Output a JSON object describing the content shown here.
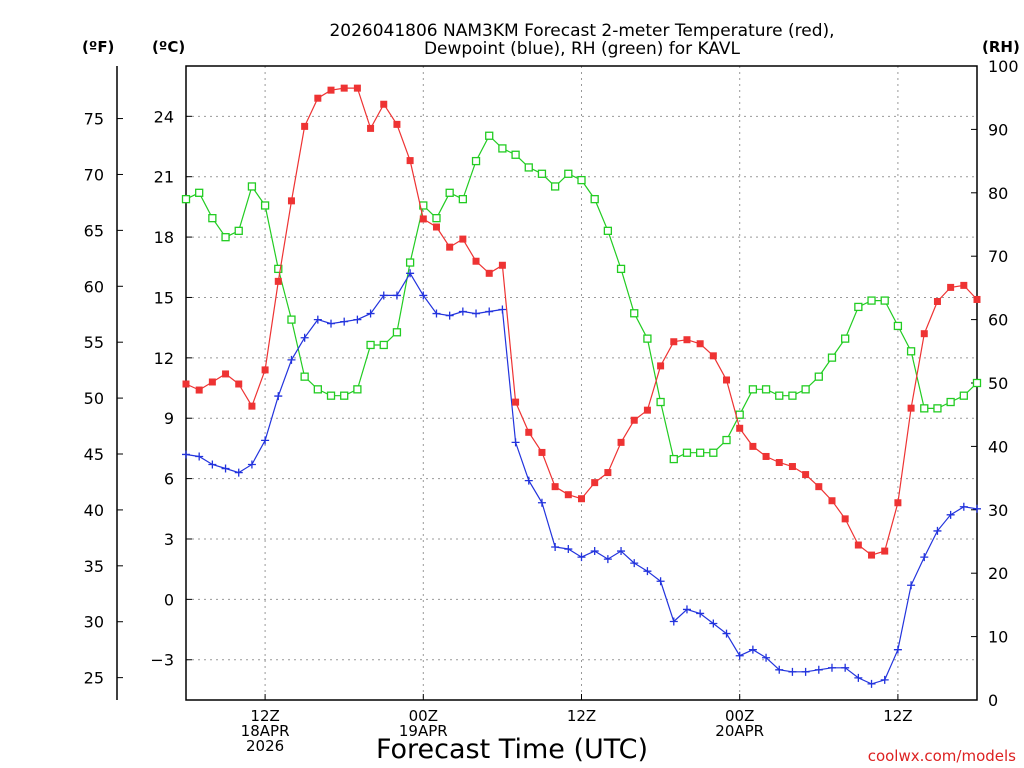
{
  "title_line1": "2026041806 NAM3KM Forecast 2-meter Temperature (red),",
  "title_line2": "Dewpoint (blue), RH (green) for KAVL",
  "unit_f": "(ºF)",
  "unit_c": "(ºC)",
  "unit_rh": "(RH)",
  "x_axis_title": "Forecast Time (UTC)",
  "credit": "coolwx.com/models",
  "colors": {
    "temperature": "#ee3333",
    "dewpoint": "#2233dd",
    "rh": "#22cc22",
    "grid": "#999999"
  },
  "chart_data": {
    "type": "line",
    "title": "2026041806 NAM3KM Forecast 2-meter Temperature (red), Dewpoint (blue), RH (green) for KAVL",
    "xlabel": "Forecast Time (UTC)",
    "x_unit": "hours since 2026-04-18 06Z",
    "xlim": [
      0,
      60
    ],
    "x_ticks": [
      {
        "value": 6,
        "lines": [
          "12Z",
          "18APR",
          "2026"
        ]
      },
      {
        "value": 18,
        "lines": [
          "00Z",
          "19APR"
        ]
      },
      {
        "value": 30,
        "lines": [
          "12Z"
        ]
      },
      {
        "value": 42,
        "lines": [
          "00Z",
          "20APR"
        ]
      },
      {
        "value": 54,
        "lines": [
          "12Z"
        ]
      }
    ],
    "ylabel_left_celsius": "(ºC)",
    "ylim_celsius": [
      -5,
      26.5
    ],
    "y_ticks_celsius": [
      -3,
      0,
      3,
      6,
      9,
      12,
      15,
      18,
      21,
      24
    ],
    "y_ticks_fahrenheit": [
      25,
      30,
      35,
      40,
      45,
      50,
      55,
      60,
      65,
      70,
      75
    ],
    "ylabel_right_rh": "(RH)",
    "ylim_rh": [
      0,
      100
    ],
    "y_ticks_rh": [
      0,
      10,
      20,
      30,
      40,
      50,
      60,
      70,
      80,
      90,
      100
    ],
    "x": [
      0,
      1,
      2,
      3,
      4,
      5,
      6,
      7,
      8,
      9,
      10,
      11,
      12,
      13,
      14,
      15,
      16,
      17,
      18,
      19,
      20,
      21,
      22,
      23,
      24,
      25,
      26,
      27,
      28,
      29,
      30,
      31,
      32,
      33,
      34,
      35,
      36,
      37,
      38,
      39,
      40,
      41,
      42,
      43,
      44,
      45,
      46,
      47,
      48,
      49,
      50,
      51,
      52,
      53,
      54,
      55,
      56,
      57,
      58,
      59,
      60
    ],
    "series": [
      {
        "name": "Temperature (°C)",
        "axis": "celsius",
        "color": "#ee3333",
        "marker": "filled-square",
        "values": [
          10.7,
          10.4,
          10.8,
          11.2,
          10.7,
          9.6,
          11.4,
          15.8,
          19.8,
          23.5,
          24.9,
          25.3,
          25.4,
          25.4,
          23.4,
          24.6,
          23.6,
          21.8,
          18.9,
          18.5,
          17.5,
          17.9,
          16.8,
          16.2,
          16.6,
          9.8,
          8.3,
          7.3,
          5.6,
          5.2,
          5.0,
          5.8,
          6.3,
          7.8,
          8.9,
          9.4,
          11.6,
          12.8,
          12.9,
          12.7,
          12.1,
          10.9,
          8.5,
          7.6,
          7.1,
          6.8,
          6.6,
          6.2,
          5.6,
          4.9,
          4.0,
          2.7,
          2.2,
          2.4,
          4.8,
          9.5,
          13.2,
          14.8,
          15.5,
          15.6,
          14.9
        ]
      },
      {
        "name": "Dewpoint (°C)",
        "axis": "celsius",
        "color": "#2233dd",
        "marker": "plus",
        "values": [
          7.2,
          7.1,
          6.7,
          6.5,
          6.3,
          6.7,
          7.9,
          10.1,
          11.9,
          13.0,
          13.9,
          13.7,
          13.8,
          13.9,
          14.2,
          15.1,
          15.1,
          16.2,
          15.1,
          14.2,
          14.1,
          14.3,
          14.2,
          14.3,
          14.4,
          7.8,
          5.9,
          4.8,
          2.6,
          2.5,
          2.1,
          2.4,
          2.0,
          2.4,
          1.8,
          1.4,
          0.9,
          -1.1,
          -0.5,
          -0.7,
          -1.2,
          -1.7,
          -2.8,
          -2.5,
          -2.9,
          -3.5,
          -3.6,
          -3.6,
          -3.5,
          -3.4,
          -3.4,
          -3.9,
          -4.2,
          -4.0,
          -2.5,
          0.7,
          2.1,
          3.4,
          4.2,
          4.6,
          4.5
        ]
      },
      {
        "name": "Relative Humidity (%)",
        "axis": "rh",
        "color": "#22cc22",
        "marker": "open-square",
        "values": [
          79,
          80,
          76,
          73,
          74,
          81,
          78,
          68,
          60,
          51,
          49,
          48,
          48,
          49,
          56,
          56,
          58,
          69,
          78,
          76,
          80,
          79,
          85,
          89,
          87,
          86,
          84,
          83,
          81,
          83,
          82,
          79,
          74,
          68,
          61,
          57,
          47,
          38,
          39,
          39,
          39,
          41,
          45,
          49,
          49,
          48,
          48,
          49,
          51,
          54,
          57,
          62,
          63,
          63,
          59,
          55,
          46,
          46,
          47,
          48,
          50
        ]
      }
    ]
  }
}
